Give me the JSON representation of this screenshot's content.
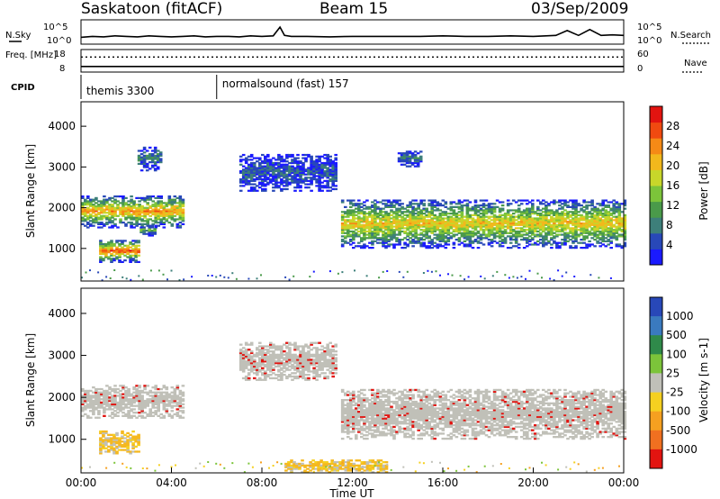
{
  "header": {
    "station": "Saskatoon (fitACF)",
    "beam": "Beam 15",
    "date": "03/Sep/2009"
  },
  "chart_data": [
    {
      "type": "line",
      "panel": "noise",
      "left_axis_label": "N.Sky",
      "right_axis_label": "N.Search",
      "left_ticks": [
        "10^5",
        "10^0"
      ],
      "right_ticks": [
        "10^5",
        "10^0"
      ],
      "series": [
        {
          "name": "N.Sky",
          "style": "solid",
          "x": [
            0,
            0.5,
            1,
            1.5,
            2,
            2.5,
            3,
            3.5,
            4,
            4.5,
            5,
            5.5,
            6,
            6.5,
            7,
            7.5,
            8,
            8.5,
            8.8,
            9,
            9.3,
            10,
            11,
            12,
            13,
            14,
            15,
            16,
            17,
            18,
            19,
            20,
            21,
            21.5,
            22,
            22.5,
            23,
            23.5,
            24
          ],
          "y": [
            1.4,
            1.6,
            1.5,
            1.7,
            1.6,
            1.5,
            1.7,
            1.6,
            1.5,
            1.6,
            1.7,
            1.5,
            1.6,
            1.6,
            1.5,
            1.7,
            1.6,
            1.7,
            3.5,
            1.8,
            1.6,
            1.6,
            1.5,
            1.6,
            1.6,
            1.6,
            1.6,
            1.7,
            1.6,
            1.6,
            1.7,
            1.6,
            1.8,
            2.8,
            1.8,
            3.0,
            1.8,
            1.9,
            1.8
          ]
        }
      ],
      "ylim": [
        0,
        5
      ]
    },
    {
      "type": "line",
      "panel": "frequency",
      "left_axis_label": "Freq. [MHz]",
      "right_axis_label": "Nave",
      "left_ticks": [
        "18",
        "8"
      ],
      "right_ticks": [
        "60",
        "0"
      ],
      "series": [
        {
          "name": "Freq.",
          "style": "solid",
          "x": [
            0,
            24
          ],
          "y": [
            10.5,
            10.5
          ]
        },
        {
          "name": "Nave",
          "style": "dotted",
          "x": [
            0,
            24
          ],
          "y": [
            40,
            40
          ]
        }
      ]
    },
    {
      "type": "table",
      "panel": "cpid",
      "label": "CPID",
      "entries": [
        {
          "start": 0,
          "text": "themis 3300"
        },
        {
          "start": 6,
          "text": "normalsound (fast) 157"
        }
      ]
    },
    {
      "type": "heatmap",
      "panel": "power",
      "ylabel": "Slant Range [km]",
      "yticks": [
        1000,
        2000,
        3000,
        4000
      ],
      "ylim": [
        200,
        4600
      ],
      "xlim": [
        0,
        24
      ],
      "colorbar": {
        "label": "Power [dB]",
        "ticks": [
          "4",
          "8",
          "12",
          "16",
          "20",
          "24",
          "28"
        ],
        "colors": [
          "#1a1aff",
          "#2848b8",
          "#3d7f7a",
          "#4a9a4a",
          "#7cc43a",
          "#c8d62a",
          "#f2b81c",
          "#f58a16",
          "#f04a10",
          "#e21410"
        ]
      },
      "regions": [
        {
          "t0": 0.0,
          "t1": 4.5,
          "r0": 1500,
          "r1": 2300,
          "level": 0.75
        },
        {
          "t0": 0.8,
          "t1": 2.6,
          "r0": 650,
          "r1": 1200,
          "level": 0.85
        },
        {
          "t0": 2.6,
          "t1": 3.3,
          "r0": 1300,
          "r1": 1550,
          "level": 0.4
        },
        {
          "t0": 2.5,
          "t1": 3.5,
          "r0": 2900,
          "r1": 3500,
          "level": 0.25
        },
        {
          "t0": 7.0,
          "t1": 11.2,
          "r0": 2400,
          "r1": 3300,
          "level": 0.15
        },
        {
          "t0": 11.5,
          "t1": 24.0,
          "r0": 1000,
          "r1": 2200,
          "level": 0.65
        },
        {
          "t0": 14.0,
          "t1": 15.0,
          "r0": 3000,
          "r1": 3400,
          "level": 0.2
        }
      ]
    },
    {
      "type": "heatmap",
      "panel": "velocity",
      "ylabel": "Slant Range [km]",
      "xlabel": "Time UT",
      "yticks": [
        1000,
        2000,
        3000,
        4000
      ],
      "ylim": [
        200,
        4600
      ],
      "xlim": [
        0,
        24
      ],
      "xticks": [
        "00:00",
        "04:00",
        "08:00",
        "12:00",
        "16:00",
        "20:00",
        "00:00"
      ],
      "colorbar": {
        "label": "Velocity [m s-1]",
        "ticks": [
          "1000",
          "500",
          "100",
          "25",
          "-25",
          "-100",
          "-500",
          "-1000"
        ],
        "colors": [
          "#2848b8",
          "#3a7abf",
          "#2f8a4a",
          "#7cc43a",
          "#c0c0b8",
          "#f5d020",
          "#f5a020",
          "#f07020",
          "#e21410"
        ]
      },
      "regions": [
        {
          "t0": 0.0,
          "t1": 4.5,
          "r0": 1500,
          "r1": 2300,
          "level": "grey"
        },
        {
          "t0": 0.8,
          "t1": 2.6,
          "r0": 650,
          "r1": 1200,
          "level": "orange"
        },
        {
          "t0": 7.0,
          "t1": 11.2,
          "r0": 2400,
          "r1": 3300,
          "level": "grey"
        },
        {
          "t0": 11.5,
          "t1": 24.0,
          "r0": 1000,
          "r1": 2200,
          "level": "grey"
        },
        {
          "t0": 9.0,
          "t1": 13.5,
          "r0": 200,
          "r1": 500,
          "level": "orange"
        }
      ]
    }
  ]
}
